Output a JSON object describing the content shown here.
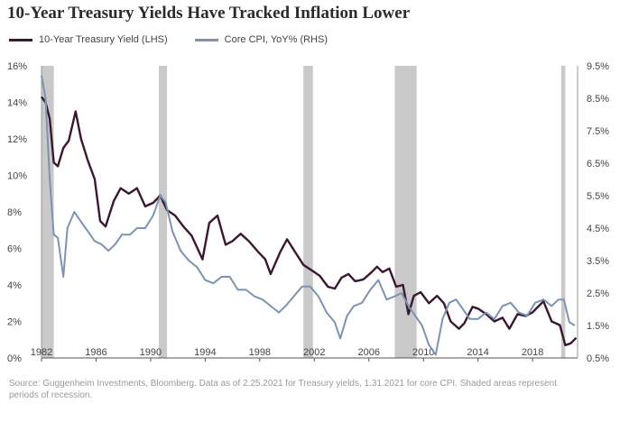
{
  "chart_data": {
    "type": "line",
    "title": "10-Year Treasury Yields Have Tracked Inflation Lower",
    "legend_placement": "top-left",
    "grid": false,
    "x_ticks": [
      "1982",
      "1986",
      "1990",
      "1994",
      "1998",
      "2002",
      "2006",
      "2010",
      "2014",
      "2018"
    ],
    "xlim": [
      1982,
      2021.3
    ],
    "y_left": {
      "ticks": [
        "0%",
        "2%",
        "4%",
        "6%",
        "8%",
        "10%",
        "12%",
        "14%",
        "16%"
      ],
      "lim": [
        0,
        16
      ]
    },
    "y_right": {
      "ticks": [
        "0.5%",
        "1.5%",
        "2.5%",
        "3.5%",
        "4.5%",
        "5.5%",
        "6.5%",
        "7.5%",
        "8.5%",
        "9.5%"
      ],
      "lim": [
        0.5,
        9.5
      ]
    },
    "recessions": [
      [
        1982.0,
        1982.9
      ],
      [
        1990.6,
        1991.2
      ],
      [
        2001.2,
        2001.9
      ],
      [
        2007.9,
        2009.5
      ],
      [
        2020.1,
        2020.4
      ]
    ],
    "series": [
      {
        "name": "10-Year Treasury Yield (LHS)",
        "axis": "left",
        "color": "#3b1830",
        "x": [
          1982.0,
          1982.3,
          1982.6,
          1982.9,
          1983.2,
          1983.6,
          1984.0,
          1984.5,
          1984.9,
          1985.4,
          1985.9,
          1986.3,
          1986.7,
          1987.3,
          1987.8,
          1988.4,
          1989.0,
          1989.6,
          1990.2,
          1990.7,
          1991.2,
          1991.8,
          1992.4,
          1993.0,
          1993.8,
          1994.3,
          1994.9,
          1995.5,
          1996.0,
          1996.6,
          1997.2,
          1997.9,
          1998.4,
          1998.8,
          1999.5,
          2000.0,
          2000.6,
          2001.2,
          2001.8,
          2002.4,
          2003.0,
          2003.5,
          2004.0,
          2004.5,
          2005.0,
          2005.6,
          2006.2,
          2006.6,
          2007.0,
          2007.5,
          2008.0,
          2008.5,
          2008.9,
          2009.3,
          2009.8,
          2010.4,
          2011.0,
          2011.5,
          2012.0,
          2012.6,
          2013.0,
          2013.6,
          2014.0,
          2014.6,
          2015.2,
          2015.8,
          2016.3,
          2016.9,
          2017.5,
          2018.0,
          2018.8,
          2019.4,
          2020.0,
          2020.4,
          2020.8,
          2021.2
        ],
        "values": [
          14.3,
          14.0,
          13.1,
          10.7,
          10.5,
          11.5,
          11.9,
          13.5,
          12.0,
          10.8,
          9.8,
          7.5,
          7.2,
          8.6,
          9.3,
          9.0,
          9.3,
          8.3,
          8.5,
          8.9,
          8.1,
          7.8,
          7.2,
          6.7,
          5.4,
          7.4,
          7.8,
          6.2,
          6.4,
          6.8,
          6.4,
          5.8,
          5.4,
          4.6,
          5.8,
          6.5,
          5.8,
          5.1,
          4.8,
          4.5,
          3.9,
          3.8,
          4.4,
          4.6,
          4.2,
          4.3,
          4.7,
          5.0,
          4.7,
          4.9,
          3.9,
          4.0,
          2.4,
          3.4,
          3.6,
          3.0,
          3.4,
          3.0,
          2.0,
          1.6,
          1.9,
          2.8,
          2.7,
          2.4,
          2.0,
          2.2,
          1.6,
          2.4,
          2.3,
          2.5,
          3.1,
          2.0,
          1.8,
          0.7,
          0.8,
          1.1
        ]
      },
      {
        "name": "Core CPI, YoY% (RHS)",
        "axis": "right",
        "color": "#7c93b1",
        "x": [
          1982.0,
          1982.3,
          1982.6,
          1982.9,
          1983.2,
          1983.6,
          1983.9,
          1984.4,
          1984.9,
          1985.4,
          1985.9,
          1986.4,
          1986.9,
          1987.4,
          1987.9,
          1988.5,
          1989.0,
          1989.6,
          1990.2,
          1990.7,
          1991.1,
          1991.6,
          1992.2,
          1992.8,
          1993.4,
          1994.0,
          1994.6,
          1995.2,
          1995.8,
          1996.4,
          1997.0,
          1997.6,
          1998.2,
          1998.8,
          1999.4,
          1999.9,
          2000.5,
          2001.1,
          2001.7,
          2002.3,
          2002.9,
          2003.5,
          2003.9,
          2004.4,
          2004.9,
          2005.5,
          2006.1,
          2006.7,
          2007.3,
          2007.9,
          2008.4,
          2008.9,
          2009.4,
          2009.9,
          2010.4,
          2010.9,
          2011.4,
          2011.9,
          2012.4,
          2012.9,
          2013.4,
          2014.0,
          2014.6,
          2015.2,
          2015.8,
          2016.4,
          2017.0,
          2017.6,
          2018.2,
          2018.8,
          2019.4,
          2019.9,
          2020.3,
          2020.7,
          2021.1
        ],
        "values": [
          9.2,
          8.5,
          6.0,
          4.3,
          4.2,
          3.0,
          4.5,
          5.0,
          4.7,
          4.4,
          4.1,
          4.0,
          3.8,
          4.0,
          4.3,
          4.3,
          4.5,
          4.5,
          4.9,
          5.5,
          5.3,
          4.4,
          3.8,
          3.5,
          3.3,
          2.9,
          2.8,
          3.0,
          3.0,
          2.6,
          2.6,
          2.4,
          2.3,
          2.1,
          1.9,
          2.1,
          2.4,
          2.7,
          2.7,
          2.4,
          1.9,
          1.6,
          1.1,
          1.8,
          2.1,
          2.2,
          2.6,
          2.9,
          2.3,
          2.4,
          2.5,
          2.1,
          1.8,
          1.5,
          0.9,
          0.6,
          1.7,
          2.2,
          2.3,
          2.0,
          1.7,
          1.7,
          1.9,
          1.7,
          2.1,
          2.2,
          1.9,
          1.8,
          2.2,
          2.3,
          2.1,
          2.3,
          2.3,
          1.6,
          1.5
        ]
      }
    ]
  },
  "legend": {
    "items": [
      {
        "label": "10-Year Treasury Yield (LHS)",
        "color": "#3b1830"
      },
      {
        "label": "Core CPI, YoY% (RHS)",
        "color": "#7c93b1"
      }
    ]
  },
  "source_note": "Source: Guggenheim Investments, Bloomberg. Data as of 2.25.2021 for Treasury yields, 1.31.2021 for core CPI. Shaded areas represent periods of recession."
}
